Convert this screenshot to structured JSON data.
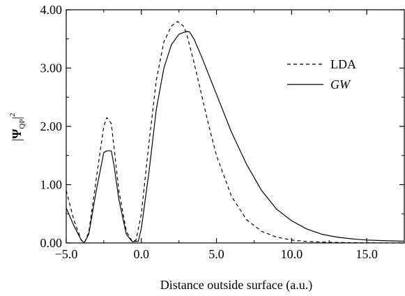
{
  "chart_data": {
    "type": "line",
    "xlabel": "Distance outside surface (a.u.)",
    "ylabel": "|ΨQP|2",
    "ylabel_parts": {
      "symbol": "Ψ",
      "subscript": "QP",
      "superscript": "2"
    },
    "xlim": [
      -5.0,
      17.5
    ],
    "ylim": [
      0.0,
      4.0
    ],
    "x_ticks": [
      -5.0,
      0.0,
      5.0,
      10.0,
      15.0
    ],
    "x_tick_labels": [
      "−5.0",
      "0.0",
      "5.0",
      "10.0",
      "15.0"
    ],
    "y_ticks": [
      0.0,
      1.0,
      2.0,
      3.0,
      4.0
    ],
    "y_tick_labels": [
      "0.00",
      "1.00",
      "2.00",
      "3.00",
      "4.00"
    ],
    "grid": false,
    "legend_position": "top-right",
    "series": [
      {
        "name": "LDA",
        "style": "dashed",
        "color": "#000000",
        "x": [
          -5.0,
          -4.5,
          -4.0,
          -3.8,
          -3.5,
          -3.0,
          -2.5,
          -2.3,
          -2.0,
          -1.8,
          -1.5,
          -1.0,
          -0.6,
          -0.35,
          0.0,
          0.5,
          1.0,
          1.5,
          2.0,
          2.4,
          2.8,
          3.0,
          3.5,
          4.0,
          4.5,
          5.0,
          6.0,
          7.0,
          8.0,
          9.0,
          10.0,
          11.0,
          12.0,
          13.0,
          14.0,
          15.0,
          16.0,
          17.5
        ],
        "y": [
          0.9,
          0.4,
          0.05,
          0.0,
          0.18,
          1.1,
          2.0,
          2.15,
          2.05,
          1.6,
          0.9,
          0.2,
          0.02,
          0.05,
          0.5,
          1.7,
          2.8,
          3.45,
          3.72,
          3.8,
          3.72,
          3.6,
          3.1,
          2.55,
          2.0,
          1.5,
          0.8,
          0.4,
          0.2,
          0.1,
          0.05,
          0.025,
          0.015,
          0.01,
          0.005,
          0.003,
          0.002,
          0.001
        ]
      },
      {
        "name": "GW",
        "style": "solid",
        "color": "#000000",
        "x": [
          -5.0,
          -4.5,
          -4.0,
          -3.8,
          -3.5,
          -3.0,
          -2.5,
          -2.3,
          -2.0,
          -1.8,
          -1.5,
          -1.0,
          -0.6,
          -0.2,
          0.0,
          0.5,
          1.0,
          1.5,
          2.0,
          2.5,
          3.0,
          3.2,
          3.5,
          4.0,
          5.0,
          6.0,
          7.0,
          8.0,
          9.0,
          10.0,
          11.0,
          12.0,
          13.0,
          14.0,
          15.0,
          16.0,
          17.5
        ],
        "y": [
          0.6,
          0.3,
          0.05,
          0.0,
          0.15,
          0.9,
          1.55,
          1.58,
          1.58,
          1.3,
          0.75,
          0.15,
          0.02,
          0.03,
          0.25,
          1.2,
          2.3,
          3.0,
          3.4,
          3.58,
          3.63,
          3.62,
          3.5,
          3.2,
          2.55,
          1.9,
          1.35,
          0.9,
          0.58,
          0.38,
          0.24,
          0.15,
          0.1,
          0.07,
          0.05,
          0.04,
          0.03
        ]
      }
    ]
  }
}
